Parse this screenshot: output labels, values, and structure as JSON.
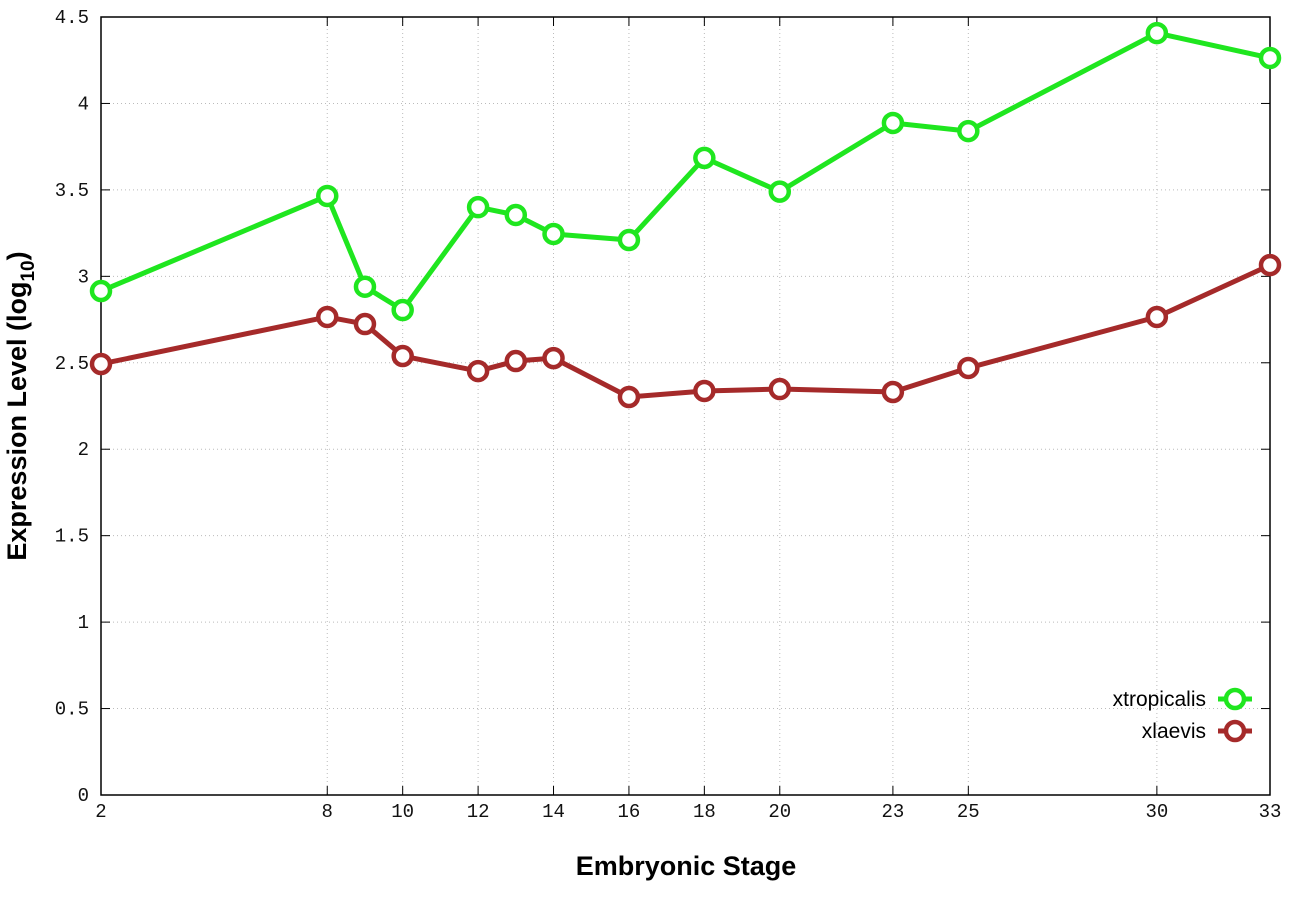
{
  "chart_data": {
    "type": "line",
    "x_label": "Embryonic Stage",
    "y_label": "Expression Level (log",
    "y_label_subscript": "10",
    "y_label_end": ")",
    "x": [
      2,
      8,
      9,
      10,
      12,
      13,
      14,
      16,
      18,
      20,
      23,
      25,
      30,
      33
    ],
    "series": [
      {
        "name": "xtropicalis",
        "color": "#1fe61f",
        "values": [
          2.915,
          3.465,
          2.94,
          2.805,
          3.4,
          3.355,
          3.245,
          3.21,
          3.685,
          3.49,
          3.887,
          3.84,
          4.407,
          4.263
        ]
      },
      {
        "name": "xlaevis",
        "color": "#a52a2a",
        "values": [
          2.493,
          2.765,
          2.724,
          2.539,
          2.452,
          2.51,
          2.527,
          2.302,
          2.337,
          2.348,
          2.331,
          2.47,
          2.765,
          3.065
        ]
      }
    ],
    "xlim": [
      2,
      33
    ],
    "xticks": [
      2,
      8,
      10,
      12,
      14,
      16,
      18,
      20,
      23,
      25,
      30,
      33
    ],
    "ylim": [
      0,
      4.5
    ],
    "yticks": [
      0,
      0.5,
      1,
      1.5,
      2,
      2.5,
      3,
      3.5,
      4,
      4.5
    ],
    "grid": true,
    "legend": "lower right"
  }
}
